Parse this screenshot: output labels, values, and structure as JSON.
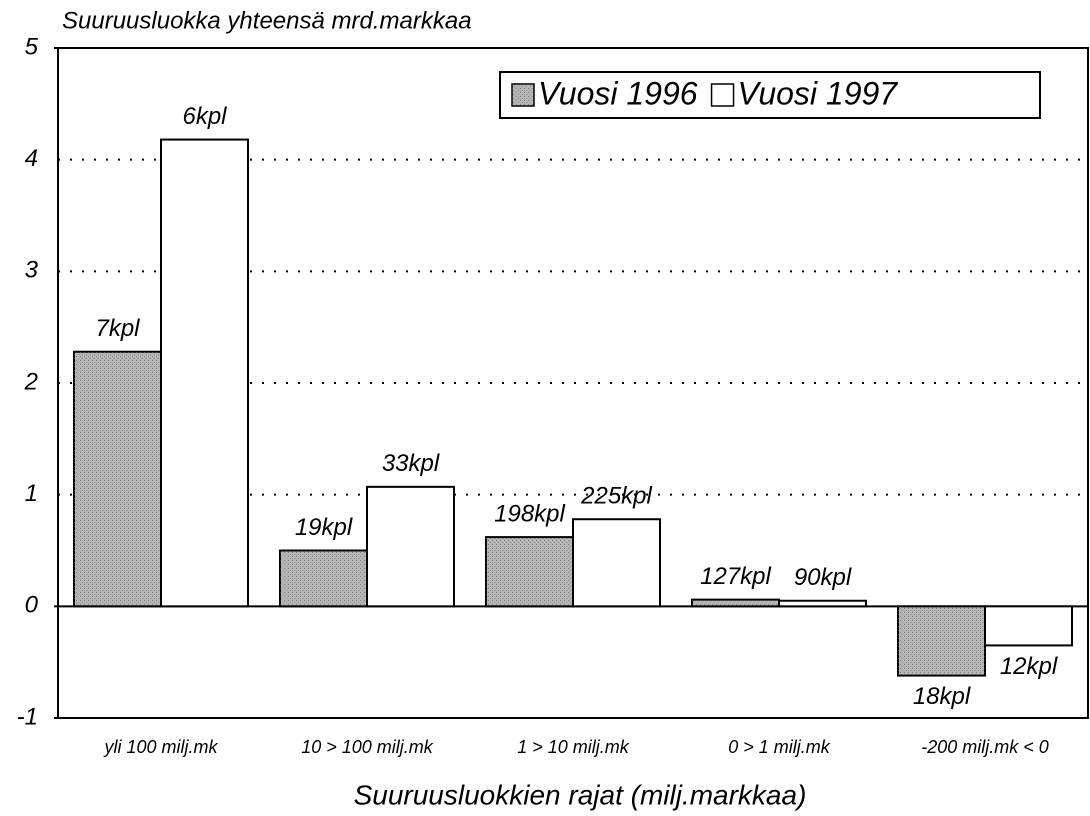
{
  "chart_data": {
    "type": "bar",
    "title": "Suuruusluokka  yhteensä mrd.markkaa",
    "x_label": "Suuruusluokkien rajat (milj.markkaa)",
    "categories": [
      "yli 100 milj.mk",
      "10 > 100 milj.mk",
      "1 > 10 milj.mk",
      "0 > 1 milj.mk",
      "-200  milj.mk < 0"
    ],
    "series": [
      {
        "name": "Vuosi 1996",
        "color": "#b4b4b4",
        "values": [
          2.28,
          0.5,
          0.62,
          0.06,
          -0.62
        ],
        "labels": [
          "7kpl",
          "19kpl",
          "198kpl",
          "127kpl",
          "18kpl"
        ]
      },
      {
        "name": "Vuosi 1997",
        "color": "#ffffff",
        "values": [
          4.18,
          1.07,
          0.78,
          0.05,
          -0.35
        ],
        "labels": [
          "6kpl",
          "33kpl",
          "225kpl",
          "90kpl",
          "12kpl"
        ]
      }
    ],
    "ylim": [
      -1,
      5
    ],
    "yticks": [
      -1,
      0,
      1,
      2,
      3,
      4,
      5
    ],
    "grid": true,
    "legend": "top-right"
  }
}
